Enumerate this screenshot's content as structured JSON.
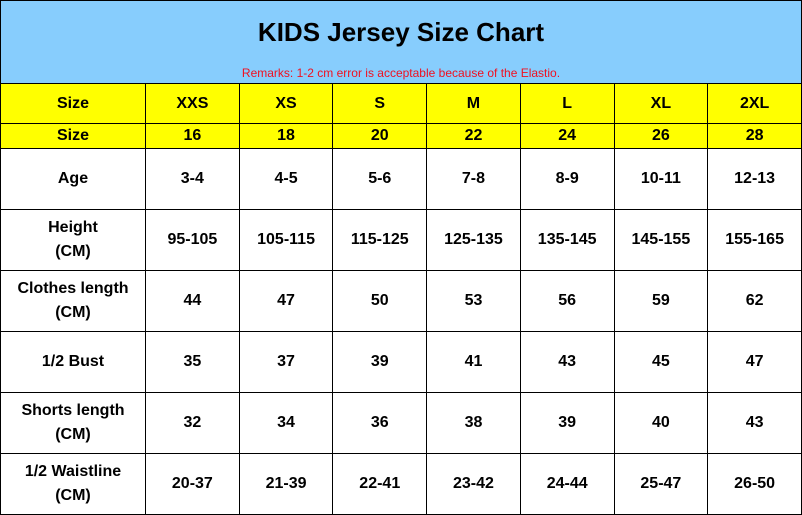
{
  "header": {
    "title": "KIDS Jersey Size Chart",
    "remark": "Remarks: 1-2 cm error is acceptable because of the Elastio.",
    "background": "#87cdfd",
    "remark_color": "#f01020"
  },
  "table": {
    "highlight_color": "#ffff00",
    "rows": [
      {
        "label": "Size",
        "values": [
          "XXS",
          "XS",
          "S",
          "M",
          "L",
          "XL",
          "2XL"
        ]
      },
      {
        "label": "Size",
        "values": [
          "16",
          "18",
          "20",
          "22",
          "24",
          "26",
          "28"
        ]
      },
      {
        "label": "Age",
        "values": [
          "3-4",
          "4-5",
          "5-6",
          "7-8",
          "8-9",
          "10-11",
          "12-13"
        ]
      },
      {
        "label": "Height",
        "unit": "(CM)",
        "values": [
          "95-105",
          "105-115",
          "115-125",
          "125-135",
          "135-145",
          "145-155",
          "155-165"
        ]
      },
      {
        "label": "Clothes length",
        "unit": "(CM)",
        "values": [
          "44",
          "47",
          "50",
          "53",
          "56",
          "59",
          "62"
        ]
      },
      {
        "label": "1/2 Bust",
        "values": [
          "35",
          "37",
          "39",
          "41",
          "43",
          "45",
          "47"
        ]
      },
      {
        "label": "Shorts length",
        "unit": "(CM)",
        "values": [
          "32",
          "34",
          "36",
          "38",
          "39",
          "40",
          "43"
        ]
      },
      {
        "label": "1/2 Waistline",
        "unit": "(CM)",
        "values": [
          "20-37",
          "21-39",
          "22-41",
          "23-42",
          "24-44",
          "25-47",
          "26-50"
        ]
      }
    ]
  }
}
